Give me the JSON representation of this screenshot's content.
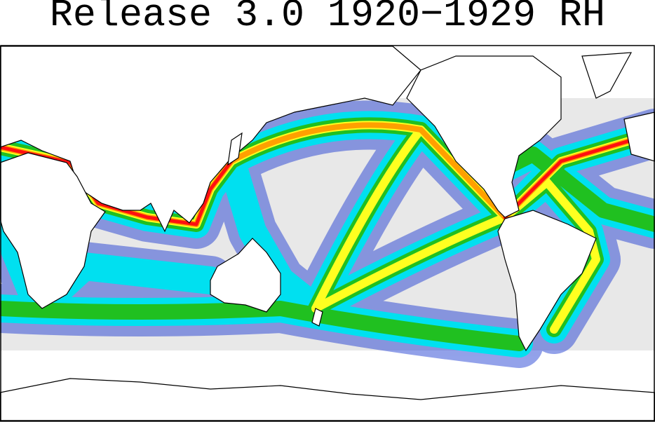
{
  "header": {
    "title": "Release 3.0 1920−1929 RH"
  }
}
